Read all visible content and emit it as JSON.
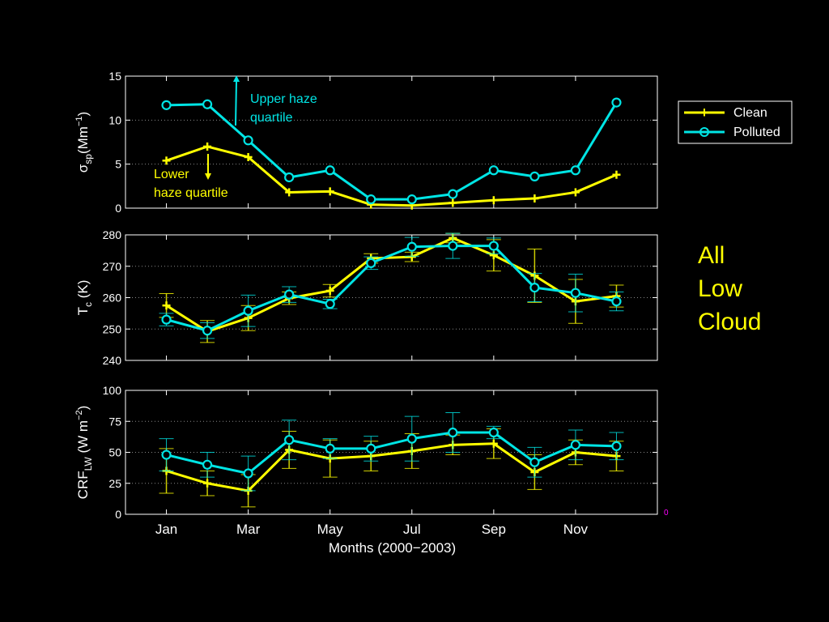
{
  "colors": {
    "clean": "#ffff00",
    "polluted": "#00e5e5",
    "axes": "#ffffff",
    "grid": "#888888",
    "side_label": "#ffff00"
  },
  "side_label": [
    "All",
    "Low",
    "Cloud"
  ],
  "stray_glyph": "0",
  "legend": {
    "clean": "Clean",
    "polluted": "Polluted"
  },
  "annotations": {
    "upper": [
      "Upper haze",
      "quartile"
    ],
    "lower": [
      "Lower",
      "haze quartile"
    ]
  },
  "chart_data": [
    {
      "type": "line",
      "ylabel_main": "σ",
      "ylabel_sub": "sp",
      "ylabel_unit": "(Mm",
      "ylabel_sup": "−1",
      "ylabel_close": ")",
      "x": [
        1,
        2,
        3,
        4,
        5,
        6,
        7,
        8,
        9,
        10,
        11,
        12
      ],
      "ylim": [
        0,
        15
      ],
      "yticks": [
        0,
        5,
        10,
        15
      ],
      "grid": true,
      "series": [
        {
          "name": "Clean",
          "values": [
            5.4,
            7.0,
            5.8,
            1.8,
            1.9,
            0.4,
            0.3,
            0.6,
            0.9,
            1.1,
            1.8,
            3.8
          ]
        },
        {
          "name": "Polluted",
          "values": [
            11.7,
            11.8,
            7.7,
            3.5,
            4.3,
            1.0,
            1.0,
            1.6,
            4.3,
            3.6,
            4.3,
            12.0
          ]
        }
      ]
    },
    {
      "type": "line",
      "ylabel_main": "T",
      "ylabel_sub": "c",
      "ylabel_unit": " (K)",
      "ylabel_sup": "",
      "ylabel_close": "",
      "x": [
        1,
        2,
        3,
        4,
        5,
        6,
        7,
        8,
        9,
        10,
        11,
        12
      ],
      "ylim": [
        240,
        280
      ],
      "yticks": [
        240,
        250,
        260,
        270,
        280
      ],
      "grid": true,
      "series": [
        {
          "name": "Clean",
          "values": [
            257.5,
            249.2,
            253.5,
            259.8,
            262.2,
            272.5,
            273.0,
            279.0,
            273.5,
            267.0,
            258.8,
            260.5
          ],
          "err": [
            3.8,
            3.5,
            4.0,
            2.0,
            2.0,
            1.5,
            1.5,
            1.5,
            5.0,
            8.5,
            7.0,
            3.5
          ]
        },
        {
          "name": "Polluted",
          "values": [
            253.0,
            249.5,
            255.8,
            261.0,
            258.0,
            271.0,
            276.2,
            276.5,
            276.5,
            263.2,
            261.5,
            258.8
          ],
          "err": [
            2.0,
            2.5,
            5.0,
            2.5,
            1.5,
            2.0,
            3.0,
            4.0,
            2.5,
            4.5,
            6.0,
            3.0
          ]
        }
      ]
    },
    {
      "type": "line",
      "ylabel_main": "CRF",
      "ylabel_sub": "LW",
      "ylabel_unit": " (W m",
      "ylabel_sup": "−2",
      "ylabel_close": ")",
      "xlabel": "Months (2000−2003)",
      "x": [
        1,
        2,
        3,
        4,
        5,
        6,
        7,
        8,
        9,
        10,
        11,
        12
      ],
      "xticks": [
        1,
        3,
        5,
        7,
        9,
        11
      ],
      "xticklabels": [
        "Jan",
        "Mar",
        "May",
        "Jul",
        "Sep",
        "Nov"
      ],
      "ylim": [
        0,
        100
      ],
      "yticks": [
        0,
        25,
        50,
        75,
        100
      ],
      "grid": true,
      "series": [
        {
          "name": "Clean",
          "values": [
            35,
            25,
            19,
            52,
            45,
            47,
            51,
            56,
            57,
            34,
            50,
            47
          ],
          "err": [
            18,
            10,
            13,
            15,
            15,
            12,
            14,
            8,
            12,
            14,
            10,
            12
          ]
        },
        {
          "name": "Polluted",
          "values": [
            48,
            40,
            33,
            60,
            53,
            53,
            61,
            66,
            66,
            42,
            56,
            55
          ],
          "err": [
            13,
            10,
            14,
            16,
            8,
            10,
            18,
            16,
            5,
            12,
            12,
            11
          ]
        }
      ]
    }
  ]
}
